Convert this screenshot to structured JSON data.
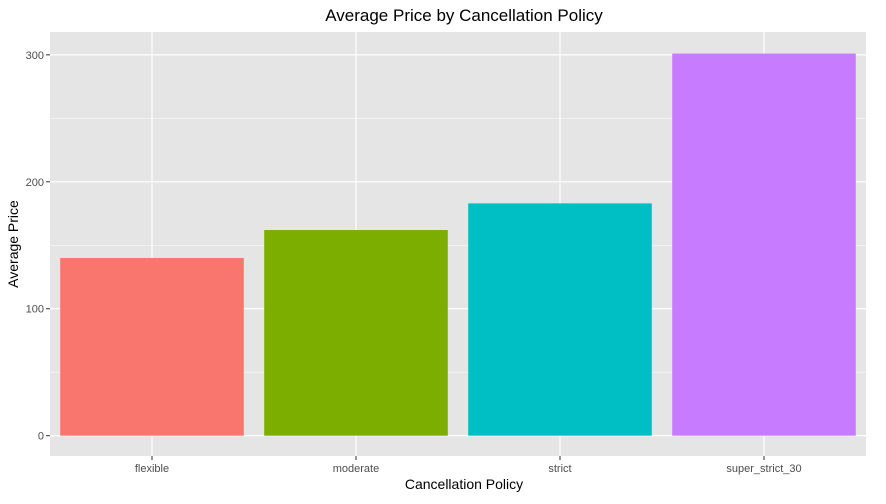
{
  "chart_data": {
    "type": "bar",
    "title": "Average Price by Cancellation Policy",
    "xlabel": "Cancellation Policy",
    "ylabel": "Average Price",
    "categories": [
      "flexible",
      "moderate",
      "strict",
      "super_strict_30"
    ],
    "values": [
      140,
      162,
      183,
      301
    ],
    "colors": [
      "#F8766D",
      "#7CAE00",
      "#00BFC4",
      "#C77CFF"
    ],
    "ylim": [
      -16,
      318
    ],
    "yticks": [
      0,
      100,
      200,
      300
    ],
    "grid": true,
    "legend": "none",
    "panel_background": "#E5E5E5",
    "grid_color": "#FFFFFF"
  }
}
